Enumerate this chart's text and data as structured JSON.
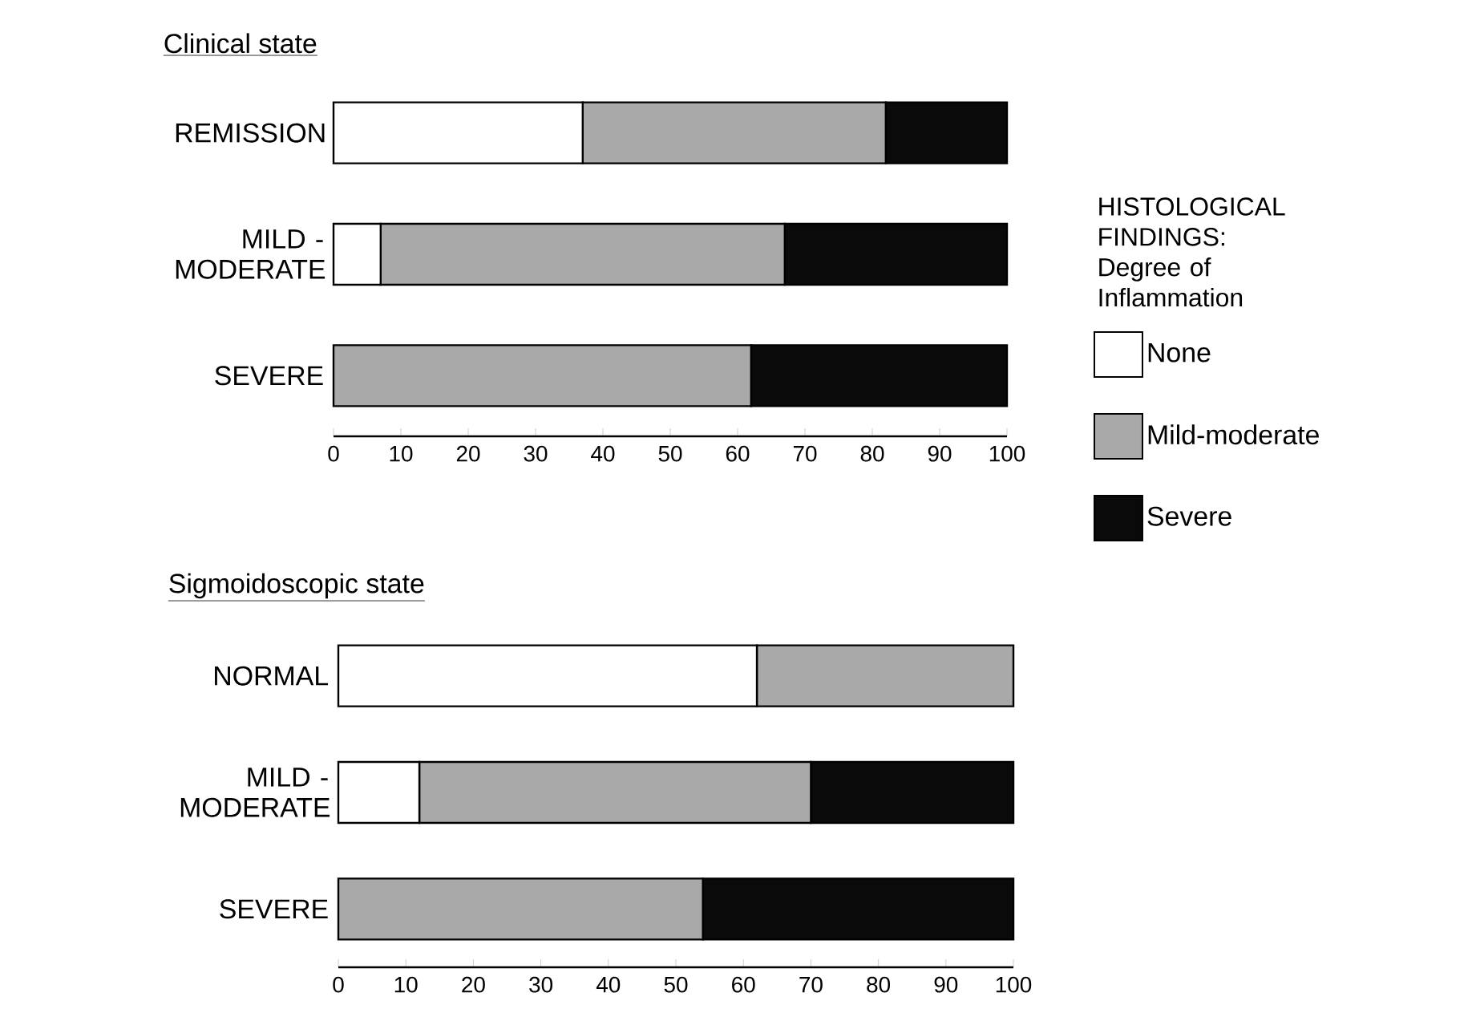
{
  "chart_data": [
    {
      "type": "bar",
      "orientation": "horizontal",
      "stacked": true,
      "title": "Clinical state",
      "legend_title": "HISTOLOGICAL FINDINGS: Degree of Inflammation",
      "legend": "right",
      "categories": [
        "REMISSION",
        "MILD - MODERATE",
        "SEVERE"
      ],
      "series": [
        {
          "name": "None",
          "color": "#ffffff",
          "values": [
            37,
            7,
            0
          ]
        },
        {
          "name": "Mild-moderate",
          "color": "#a9a9a9",
          "values": [
            45,
            60,
            62
          ]
        },
        {
          "name": "Severe",
          "color": "#0a0a0a",
          "values": [
            18,
            33,
            38
          ]
        }
      ],
      "xlim": [
        0,
        100
      ],
      "xticks": [
        0,
        10,
        20,
        30,
        40,
        50,
        60,
        70,
        80,
        90,
        100
      ]
    },
    {
      "type": "bar",
      "orientation": "horizontal",
      "stacked": true,
      "title": "Sigmoidoscopic state",
      "categories": [
        "NORMAL",
        "MILD - MODERATE",
        "SEVERE"
      ],
      "series": [
        {
          "color": "#ffffff",
          "values": [
            62,
            12,
            0
          ]
        },
        {
          "color": "#a9a9a9",
          "values": [
            38,
            58,
            54
          ]
        },
        {
          "color": "#0a0a0a",
          "values": [
            0,
            30,
            46
          ]
        }
      ],
      "xlim": [
        0,
        100
      ],
      "xticks": [
        0,
        10,
        20,
        30,
        40,
        50,
        60,
        70,
        80,
        90,
        100
      ]
    }
  ]
}
